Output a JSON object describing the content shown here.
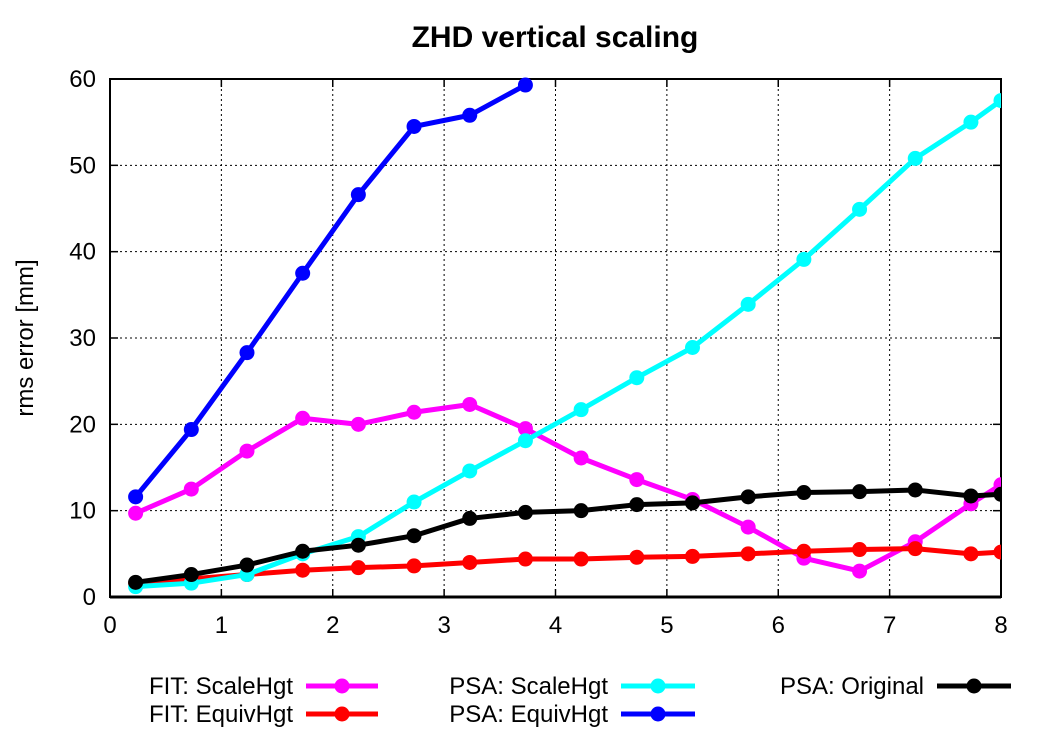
{
  "chart_data": {
    "type": "line",
    "title": "ZHD vertical scaling",
    "xlabel": "",
    "ylabel": "rms error [mm]",
    "xlim": [
      0,
      8
    ],
    "ylim": [
      0,
      60
    ],
    "xticks": [
      0,
      1,
      2,
      3,
      4,
      5,
      6,
      7,
      8
    ],
    "yticks": [
      0,
      10,
      20,
      30,
      40,
      50,
      60
    ],
    "grid": true,
    "legend_position": "bottom",
    "series": [
      {
        "name": "FIT: ScaleHgt",
        "color": "#ff00ff",
        "x": [
          0.23,
          0.73,
          1.23,
          1.73,
          2.23,
          2.73,
          3.23,
          3.73,
          4.23,
          4.73,
          5.23,
          5.73,
          6.23,
          6.73,
          7.23,
          7.73,
          8.0
        ],
        "y": [
          9.7,
          12.5,
          16.9,
          20.7,
          20.0,
          21.4,
          22.3,
          19.5,
          16.1,
          13.6,
          11.3,
          8.1,
          4.5,
          3.0,
          6.4,
          10.8,
          13.0
        ]
      },
      {
        "name": "FIT: EquivHgt",
        "color": "#ff0000",
        "x": [
          0.23,
          0.73,
          1.23,
          1.73,
          2.23,
          2.73,
          3.23,
          3.73,
          4.23,
          4.73,
          5.23,
          5.73,
          6.23,
          6.73,
          7.23,
          7.73,
          8.0
        ],
        "y": [
          1.6,
          2.1,
          2.6,
          3.1,
          3.4,
          3.6,
          4.0,
          4.4,
          4.4,
          4.6,
          4.7,
          5.0,
          5.3,
          5.5,
          5.6,
          5.0,
          5.2
        ]
      },
      {
        "name": "PSA: ScaleHgt",
        "color": "#00ffff",
        "x": [
          0.23,
          0.73,
          1.23,
          1.73,
          2.23,
          2.73,
          3.23,
          3.73,
          4.23,
          4.73,
          5.23,
          5.73,
          6.23,
          6.73,
          7.23,
          7.73,
          8.0
        ],
        "y": [
          1.2,
          1.6,
          2.6,
          5.0,
          7.0,
          11.0,
          14.6,
          18.1,
          21.7,
          25.4,
          28.9,
          33.9,
          39.1,
          44.9,
          50.8,
          55.0,
          57.5
        ]
      },
      {
        "name": "PSA: EquivHgt",
        "color": "#0000ff",
        "x": [
          0.23,
          0.73,
          1.23,
          1.73,
          2.23,
          2.73,
          3.23,
          3.73
        ],
        "y": [
          11.6,
          19.4,
          28.3,
          37.5,
          46.6,
          54.5,
          55.8,
          59.3
        ]
      },
      {
        "name": "PSA: Original",
        "color": "#000000",
        "x": [
          0.23,
          0.73,
          1.23,
          1.73,
          2.23,
          2.73,
          3.23,
          3.73,
          4.23,
          4.73,
          5.23,
          5.73,
          6.23,
          6.73,
          7.23,
          7.73,
          8.0
        ],
        "y": [
          1.7,
          2.6,
          3.7,
          5.3,
          6.0,
          7.1,
          9.1,
          9.8,
          10.0,
          10.7,
          10.9,
          11.6,
          12.1,
          12.2,
          12.4,
          11.7,
          11.9
        ]
      }
    ]
  }
}
